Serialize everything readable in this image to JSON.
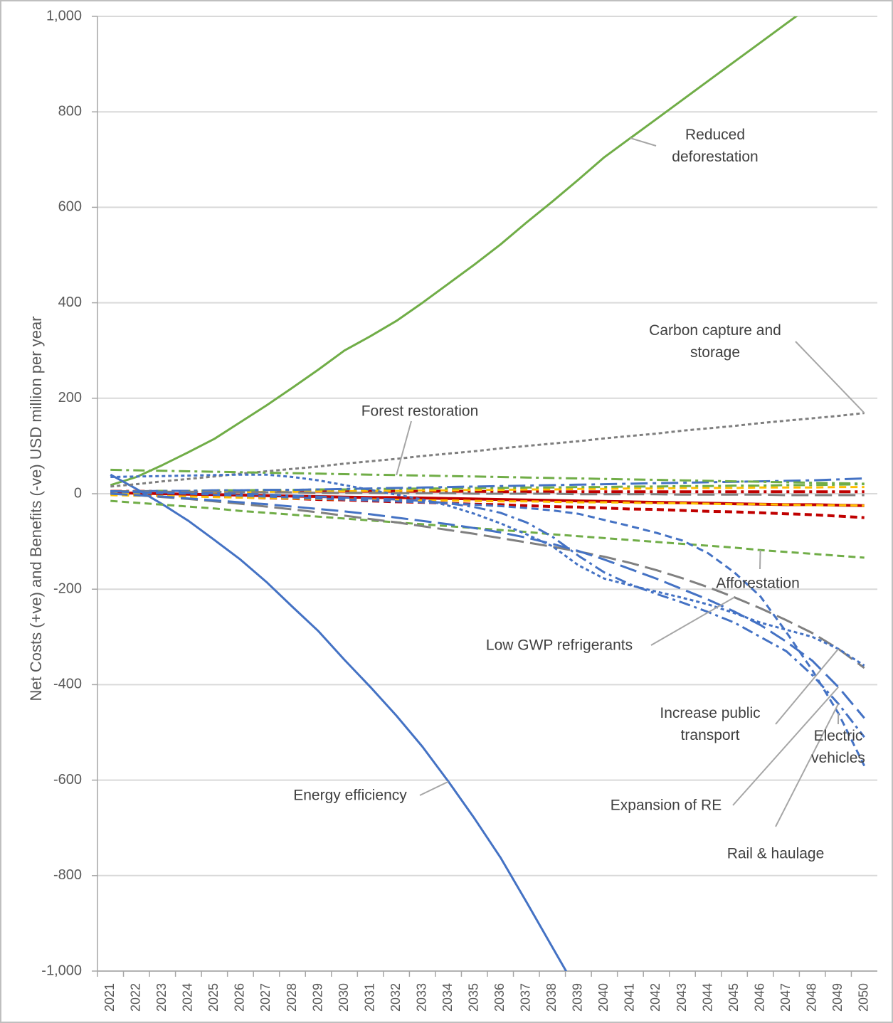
{
  "chart_data": {
    "type": "line",
    "y_label": "Net Costs (+ve) and Benefits (-ve) USD million per year",
    "categories": [
      "2021",
      "2022",
      "2023",
      "2024",
      "2025",
      "2026",
      "2027",
      "2028",
      "2029",
      "2030",
      "2031",
      "2032",
      "2033",
      "2034",
      "2035",
      "2036",
      "2037",
      "2038",
      "2039",
      "2040",
      "2041",
      "2042",
      "2043",
      "2044",
      "2045",
      "2046",
      "2047",
      "2048",
      "2049",
      "2050"
    ],
    "ylim": [
      -1000,
      1000
    ],
    "yticks": [
      {
        "value": -1000,
        "label": "-1,000"
      },
      -800,
      -600,
      -400,
      -200,
      0,
      200,
      400,
      600,
      800,
      {
        "value": 1000,
        "label": "1,000"
      }
    ],
    "grid": true,
    "series": [
      {
        "name": "Reduced deforestation",
        "color": "#70ad47",
        "style": "solid",
        "values": [
          18,
          35,
          60,
          87,
          115,
          150,
          185,
          222,
          260,
          300,
          330,
          362,
          400,
          440,
          480,
          522,
          568,
          612,
          658,
          705,
          745,
          785,
          825,
          865,
          905,
          945,
          985,
          1025,
          null,
          null
        ]
      },
      {
        "name": "Energy efficiency",
        "color": "#4472c4",
        "style": "solid",
        "values": [
          40,
          10,
          -22,
          -57,
          -97,
          -138,
          -185,
          -237,
          -288,
          -348,
          -405,
          -465,
          -530,
          -603,
          -680,
          -762,
          -855,
          -950,
          -1045,
          null,
          null,
          null,
          null,
          null,
          null,
          null,
          null,
          null,
          null,
          null
        ]
      },
      {
        "name": "Carbon capture and storage",
        "color": "#7f7f7f",
        "style": "dot",
        "values": [
          15,
          20,
          26,
          31,
          36,
          42,
          47,
          52,
          57,
          63,
          68,
          73,
          79,
          84,
          89,
          95,
          100,
          105,
          110,
          116,
          121,
          126,
          132,
          137,
          142,
          148,
          153,
          158,
          163,
          169
        ]
      },
      {
        "name": "Forest restoration",
        "color": "#70ad47",
        "style": "dash-dot",
        "values": [
          50,
          49,
          48,
          47,
          46,
          45,
          44,
          43,
          42,
          41,
          40,
          39,
          38,
          37,
          36,
          35,
          34,
          33,
          32,
          31,
          30,
          29,
          28,
          27,
          26,
          25,
          24,
          23,
          22,
          21
        ]
      },
      {
        "name": "Afforestation",
        "color": "#70ad47",
        "style": "dash",
        "values": [
          -15,
          -19,
          -23,
          -27,
          -31,
          -36,
          -40,
          -44,
          -48,
          -52,
          -56,
          -60,
          -64,
          -68,
          -72,
          -76,
          -80,
          -85,
          -89,
          -93,
          -97,
          -101,
          -105,
          -109,
          -113,
          -118,
          -122,
          -126,
          -130,
          -134
        ]
      },
      {
        "name": "Low GWP refrigerants",
        "color": "#808080",
        "style": "long-dash",
        "values": [
          0,
          -3,
          -7,
          -11,
          -16,
          -21,
          -27,
          -33,
          -39,
          -46,
          -53,
          -60,
          -68,
          -76,
          -84,
          -93,
          -102,
          -111,
          -121,
          -132,
          -145,
          -160,
          -177,
          -196,
          -217,
          -240,
          -265,
          -292,
          -325,
          -365
        ]
      },
      {
        "name": "Increase public transport",
        "color": "#4472c4",
        "style": "dot",
        "values": [
          35,
          36,
          37,
          38,
          39,
          40,
          40,
          35,
          28,
          18,
          8,
          -2,
          -12,
          -25,
          -42,
          -62,
          -85,
          -110,
          -150,
          -178,
          -192,
          -205,
          -218,
          -232,
          -250,
          -270,
          -285,
          -300,
          -325,
          -360
        ]
      },
      {
        "name": "Electric vehicles",
        "color": "#4472c4",
        "style": "dash",
        "values": [
          5,
          3,
          1,
          0,
          -2,
          -4,
          -6,
          -8,
          -10,
          -12,
          -14,
          -16,
          -18,
          -20,
          -23,
          -26,
          -30,
          -35,
          -42,
          -55,
          -68,
          -82,
          -98,
          -125,
          -165,
          -215,
          -290,
          -370,
          -460,
          -570
        ]
      },
      {
        "name": "Expansion of RE",
        "color": "#4472c4",
        "style": "long-dash",
        "values": [
          0,
          -3,
          -6,
          -10,
          -14,
          -18,
          -22,
          -27,
          -32,
          -37,
          -43,
          -50,
          -57,
          -64,
          -72,
          -81,
          -92,
          -105,
          -120,
          -138,
          -158,
          -178,
          -200,
          -222,
          -247,
          -275,
          -310,
          -350,
          -405,
          -470
        ]
      },
      {
        "name": "Rail & haulage",
        "color": "#4472c4",
        "style": "dash-dot",
        "values": [
          5,
          4,
          3,
          2,
          1,
          0,
          -2,
          -4,
          -6,
          -8,
          -10,
          -12,
          -15,
          -20,
          -28,
          -40,
          -60,
          -90,
          -130,
          -165,
          -190,
          -210,
          -228,
          -248,
          -270,
          -300,
          -330,
          -380,
          -440,
          -510
        ]
      },
      {
        "color": "#c00000",
        "style": "solid",
        "values": [
          2,
          1,
          0,
          -1,
          -2,
          -3,
          -4,
          -5,
          -6,
          -7,
          -8,
          -8,
          -9,
          -10,
          -11,
          -12,
          -13,
          -14,
          -15,
          -16,
          -17,
          -18,
          -19,
          -20,
          -21,
          -22,
          -23,
          -23,
          -24,
          -25
        ]
      },
      {
        "color": "#c00000",
        "style": "dash",
        "values": [
          0,
          -1,
          -3,
          -4,
          -6,
          -7,
          -9,
          -10,
          -12,
          -13,
          -15,
          -17,
          -18,
          -20,
          -22,
          -23,
          -25,
          -27,
          -28,
          -30,
          -32,
          -33,
          -35,
          -37,
          -38,
          -40,
          -42,
          -44,
          -47,
          -50
        ]
      },
      {
        "color": "#c00000",
        "style": "dash-dot",
        "values": [
          5,
          5,
          5,
          5,
          5,
          5,
          5,
          5,
          5,
          5,
          5,
          5,
          5,
          5,
          5,
          4,
          4,
          4,
          4,
          4,
          4,
          4,
          4,
          4,
          4,
          4,
          4,
          4,
          4,
          4
        ]
      },
      {
        "color": "#ffc000",
        "style": "dash",
        "values": [
          0,
          1,
          2,
          2,
          3,
          3,
          4,
          4,
          5,
          5,
          6,
          6,
          7,
          7,
          8,
          8,
          9,
          9,
          10,
          10,
          11,
          11,
          12,
          12,
          12,
          13,
          13,
          13,
          14,
          14
        ]
      },
      {
        "color": "#ffc000",
        "style": "dash",
        "values": [
          -3,
          -4,
          -5,
          -6,
          -7,
          -8,
          -9,
          -10,
          -11,
          -12,
          -12,
          -13,
          -14,
          -14,
          -15,
          -16,
          -16,
          -17,
          -18,
          -18,
          -19,
          -20,
          -20,
          -21,
          -22,
          -22,
          -23,
          -24,
          -24,
          -25
        ]
      },
      {
        "color": "#70ad47",
        "style": "dash-dot",
        "values": [
          5,
          5,
          6,
          6,
          7,
          7,
          8,
          8,
          9,
          9,
          10,
          10,
          11,
          11,
          12,
          12,
          13,
          13,
          14,
          14,
          15,
          15,
          16,
          16,
          17,
          17,
          18,
          18,
          19,
          20
        ]
      },
      {
        "color": "#4472c4",
        "style": "long-dash-dot",
        "values": [
          5,
          5,
          6,
          6,
          7,
          7,
          8,
          8,
          9,
          10,
          11,
          12,
          13,
          14,
          15,
          16,
          17,
          18,
          19,
          20,
          21,
          22,
          23,
          24,
          25,
          26,
          27,
          28,
          30,
          32
        ]
      },
      {
        "color": "#808080",
        "style": "long-dash",
        "values": [
          5,
          5,
          4,
          4,
          4,
          3,
          3,
          3,
          2,
          2,
          2,
          1,
          1,
          1,
          0,
          0,
          0,
          0,
          -1,
          -1,
          -1,
          -1,
          -2,
          -2,
          -2,
          -2,
          -3,
          -3,
          -3,
          -3
        ]
      }
    ]
  }
}
